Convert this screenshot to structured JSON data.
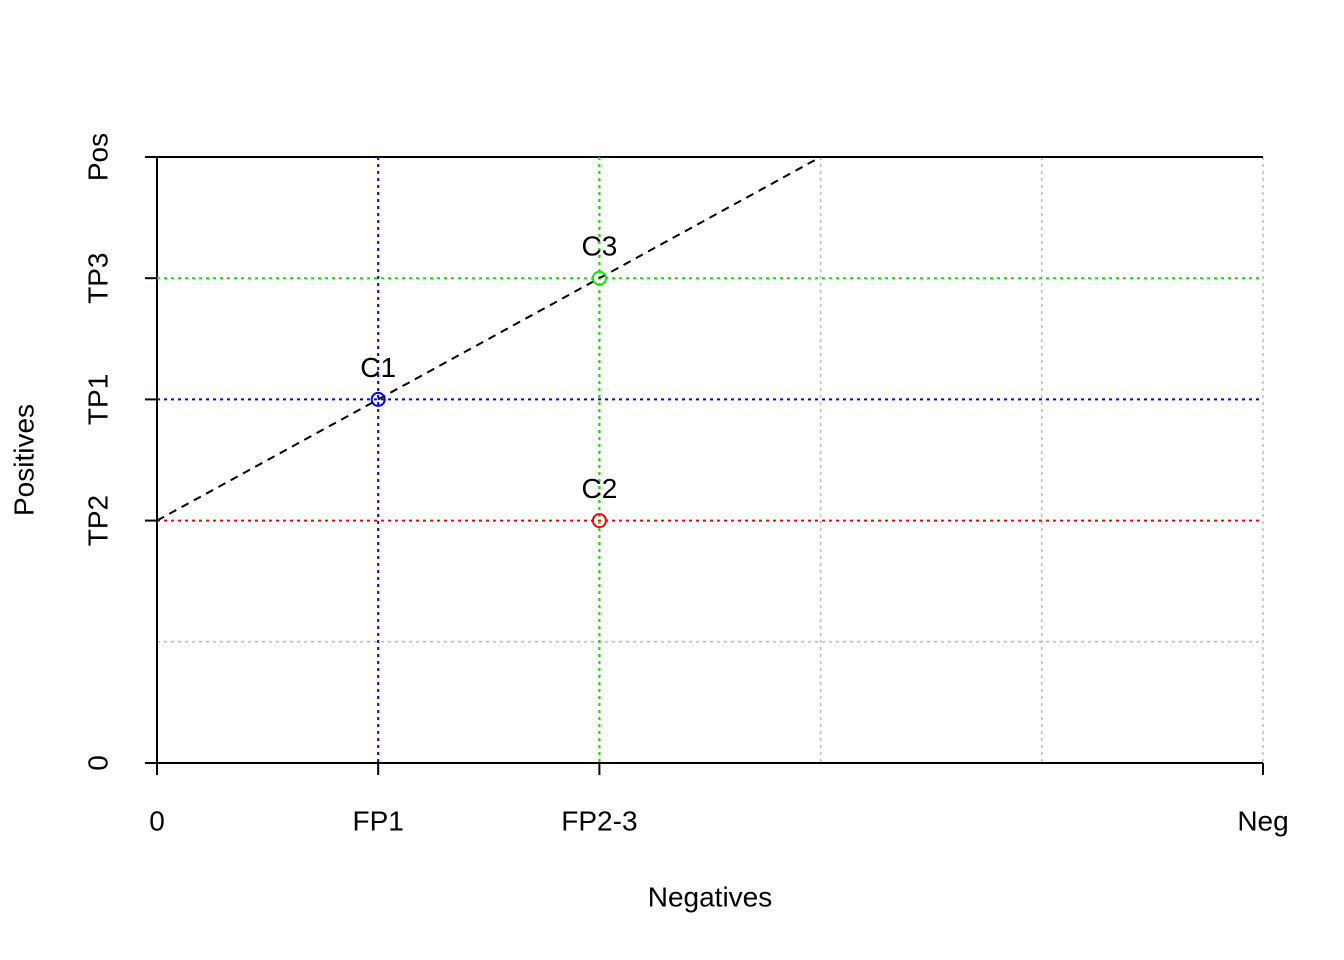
{
  "chart_data": {
    "type": "scatter",
    "x_label": "Negatives",
    "y_label": "Positives",
    "xlim": [
      0,
      5
    ],
    "ylim": [
      0,
      5
    ],
    "xticks": [
      0,
      {
        "value": 1,
        "label": "FP1"
      },
      {
        "value": 2,
        "label": "FP2-3"
      },
      {
        "value": 5,
        "label": "Neg"
      }
    ],
    "yticks": [
      0,
      {
        "value": 2,
        "label": "TP2"
      },
      {
        "value": 3,
        "label": "TP1"
      },
      {
        "value": 4,
        "label": "TP3"
      },
      {
        "value": 5,
        "label": "Pos"
      }
    ],
    "xgrid": [
      0,
      1,
      2,
      3,
      4,
      5
    ],
    "ygrid": [
      0,
      1,
      2,
      3,
      4,
      5
    ],
    "grid_color": "#bbbbbb",
    "series": [
      {
        "name": "C1",
        "color": "#0000ff",
        "x": [
          1
        ],
        "values": [
          3
        ]
      },
      {
        "name": "C2",
        "color": "#ff0000",
        "x": [
          2
        ],
        "values": [
          2
        ]
      },
      {
        "name": "C3",
        "color": "#00ee00",
        "x": [
          2
        ],
        "values": [
          4
        ]
      }
    ],
    "line": {
      "color": "#000000",
      "x": [
        0,
        3
      ],
      "y": [
        2,
        5
      ]
    }
  }
}
